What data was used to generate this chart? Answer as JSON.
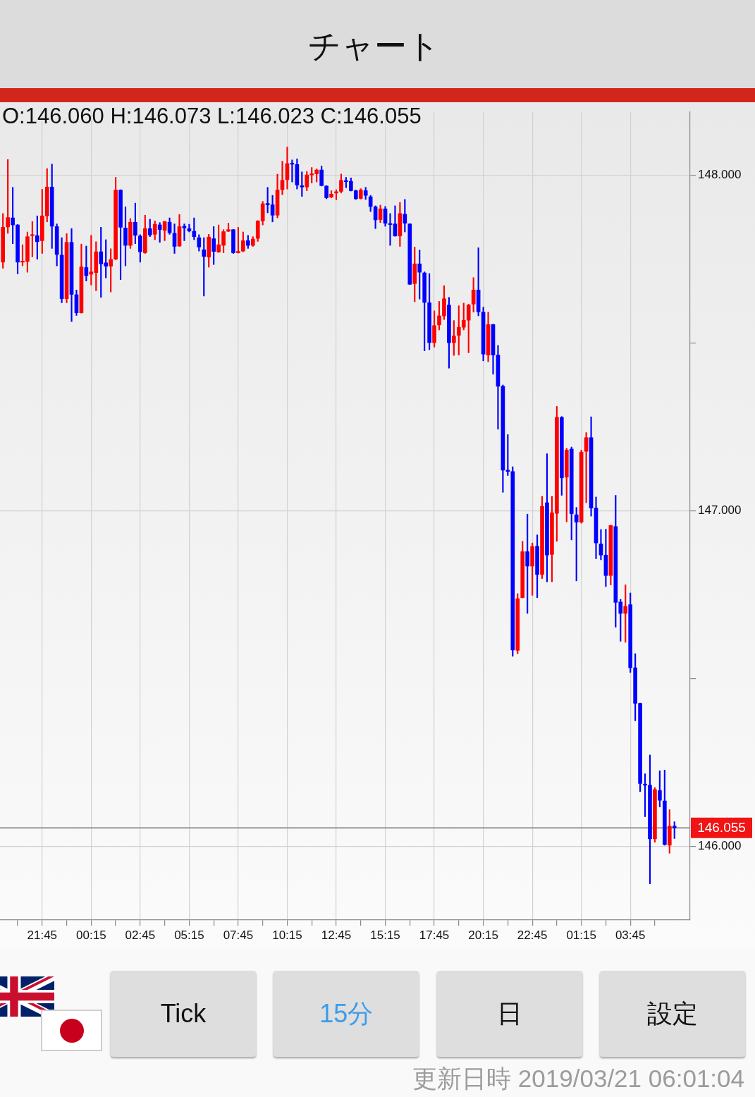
{
  "chart_data": {
    "type": "candlestick",
    "title": "チャート",
    "subtitle": "O:146.060 H:146.073 L:146.023 C:146.055",
    "x": [
      "2019-03-19T19:45",
      "2019-03-19T20:00",
      "2019-03-19T20:15",
      "2019-03-19T20:30",
      "2019-03-19T20:45",
      "2019-03-19T21:00",
      "2019-03-19T21:15",
      "2019-03-19T21:30",
      "2019-03-19T21:45",
      "2019-03-19T22:00",
      "2019-03-19T22:15",
      "2019-03-19T22:30",
      "2019-03-19T22:45",
      "2019-03-19T23:00",
      "2019-03-19T23:15",
      "2019-03-19T23:30",
      "2019-03-19T23:45",
      "2019-03-20T00:00",
      "2019-03-20T00:15",
      "2019-03-20T00:30",
      "2019-03-20T00:45",
      "2019-03-20T01:00",
      "2019-03-20T01:15",
      "2019-03-20T01:30",
      "2019-03-20T01:45",
      "2019-03-20T02:00",
      "2019-03-20T02:15",
      "2019-03-20T02:30",
      "2019-03-20T02:45",
      "2019-03-20T03:00",
      "2019-03-20T03:15",
      "2019-03-20T03:30",
      "2019-03-20T03:45",
      "2019-03-20T04:00",
      "2019-03-20T04:15",
      "2019-03-20T04:30",
      "2019-03-20T04:45",
      "2019-03-20T05:00",
      "2019-03-20T05:15",
      "2019-03-20T05:30",
      "2019-03-20T05:45",
      "2019-03-20T06:00",
      "2019-03-20T06:15",
      "2019-03-20T06:30",
      "2019-03-20T06:45",
      "2019-03-20T07:00",
      "2019-03-20T07:15",
      "2019-03-20T07:30",
      "2019-03-20T07:45",
      "2019-03-20T08:00",
      "2019-03-20T08:15",
      "2019-03-20T08:30",
      "2019-03-20T08:45",
      "2019-03-20T09:00",
      "2019-03-20T09:15",
      "2019-03-20T09:30",
      "2019-03-20T09:45",
      "2019-03-20T10:00",
      "2019-03-20T10:15",
      "2019-03-20T10:30",
      "2019-03-20T10:45",
      "2019-03-20T11:00",
      "2019-03-20T11:15",
      "2019-03-20T11:30",
      "2019-03-20T11:45",
      "2019-03-20T12:00",
      "2019-03-20T12:15",
      "2019-03-20T12:30",
      "2019-03-20T12:45",
      "2019-03-20T13:00",
      "2019-03-20T13:15",
      "2019-03-20T13:30",
      "2019-03-20T13:45",
      "2019-03-20T14:00",
      "2019-03-20T14:15",
      "2019-03-20T14:30",
      "2019-03-20T14:45",
      "2019-03-20T15:00",
      "2019-03-20T15:15",
      "2019-03-20T15:30",
      "2019-03-20T15:45",
      "2019-03-20T16:00",
      "2019-03-20T16:15",
      "2019-03-20T16:30",
      "2019-03-20T16:45",
      "2019-03-20T17:00",
      "2019-03-20T17:15",
      "2019-03-20T17:30",
      "2019-03-20T17:45",
      "2019-03-20T18:00",
      "2019-03-20T18:15",
      "2019-03-20T18:30",
      "2019-03-20T18:45",
      "2019-03-20T19:00",
      "2019-03-20T19:15",
      "2019-03-20T19:30",
      "2019-03-20T19:45",
      "2019-03-20T20:00",
      "2019-03-20T20:15",
      "2019-03-20T20:30",
      "2019-03-20T20:45",
      "2019-03-20T21:00",
      "2019-03-20T21:15",
      "2019-03-20T21:30",
      "2019-03-20T21:45",
      "2019-03-20T22:00",
      "2019-03-20T22:15",
      "2019-03-20T22:30",
      "2019-03-20T22:45",
      "2019-03-20T23:00",
      "2019-03-20T23:15",
      "2019-03-20T23:30",
      "2019-03-20T23:45",
      "2019-03-21T00:00",
      "2019-03-21T00:15",
      "2019-03-21T00:30",
      "2019-03-21T00:45",
      "2019-03-21T01:00",
      "2019-03-21T01:15",
      "2019-03-21T01:30",
      "2019-03-21T01:45",
      "2019-03-21T02:00",
      "2019-03-21T02:15",
      "2019-03-21T02:30",
      "2019-03-21T02:45",
      "2019-03-21T03:00",
      "2019-03-21T03:15",
      "2019-03-21T03:30",
      "2019-03-21T03:45",
      "2019-03-21T04:00",
      "2019-03-21T04:15",
      "2019-03-21T04:30",
      "2019-03-21T04:45",
      "2019-03-21T05:00",
      "2019-03-21T05:15",
      "2019-03-21T05:30",
      "2019-03-21T05:45",
      "2019-03-21T06:00"
    ],
    "ohlc": [
      [
        147.741,
        147.886,
        147.723,
        147.845
      ],
      [
        147.846,
        148.047,
        147.827,
        147.874
      ],
      [
        147.873,
        147.964,
        147.796,
        147.852
      ],
      [
        147.852,
        147.853,
        147.706,
        147.741
      ],
      [
        147.741,
        147.793,
        147.73,
        147.744
      ],
      [
        147.743,
        147.831,
        147.711,
        147.817
      ],
      [
        147.82,
        147.862,
        147.757,
        147.823
      ],
      [
        147.82,
        147.879,
        147.75,
        147.802
      ],
      [
        147.805,
        147.958,
        147.767,
        147.879
      ],
      [
        147.879,
        148.02,
        147.861,
        147.965
      ],
      [
        147.965,
        148.033,
        147.782,
        147.848
      ],
      [
        147.847,
        147.855,
        147.73,
        147.764
      ],
      [
        147.762,
        147.814,
        147.62,
        147.632
      ],
      [
        147.632,
        147.826,
        147.62,
        147.8
      ],
      [
        147.8,
        147.841,
        147.564,
        147.645
      ],
      [
        147.644,
        147.658,
        147.582,
        147.59
      ],
      [
        147.59,
        147.795,
        147.589,
        147.727
      ],
      [
        147.725,
        147.789,
        147.685,
        147.701
      ],
      [
        147.705,
        147.821,
        147.673,
        147.712
      ],
      [
        147.71,
        147.802,
        147.656,
        147.772
      ],
      [
        147.772,
        147.845,
        147.636,
        147.736
      ],
      [
        147.739,
        147.808,
        147.694,
        147.729
      ],
      [
        147.729,
        147.781,
        147.652,
        147.749
      ],
      [
        147.75,
        147.994,
        147.748,
        147.956
      ],
      [
        147.956,
        147.957,
        147.689,
        147.845
      ],
      [
        147.843,
        147.906,
        147.73,
        147.791
      ],
      [
        147.791,
        147.871,
        147.782,
        147.86
      ],
      [
        147.86,
        147.917,
        147.796,
        147.821
      ],
      [
        147.819,
        147.823,
        147.741,
        147.772
      ],
      [
        147.769,
        147.881,
        147.767,
        147.841
      ],
      [
        147.841,
        147.869,
        147.817,
        147.822
      ],
      [
        147.824,
        147.864,
        147.808,
        147.854
      ],
      [
        147.852,
        147.859,
        147.8,
        147.838
      ],
      [
        147.836,
        147.863,
        147.805,
        147.862
      ],
      [
        147.86,
        147.873,
        147.824,
        147.829
      ],
      [
        147.827,
        147.855,
        147.767,
        147.788
      ],
      [
        147.789,
        147.883,
        147.788,
        147.847
      ],
      [
        147.848,
        147.855,
        147.805,
        147.843
      ],
      [
        147.841,
        147.854,
        147.831,
        147.834
      ],
      [
        147.833,
        147.873,
        147.808,
        147.817
      ],
      [
        147.814,
        147.823,
        147.774,
        147.786
      ],
      [
        147.778,
        147.814,
        147.64,
        147.758
      ],
      [
        147.756,
        147.824,
        147.726,
        147.816
      ],
      [
        147.811,
        147.847,
        147.734,
        147.773
      ],
      [
        147.771,
        147.852,
        147.77,
        147.793
      ],
      [
        147.791,
        147.838,
        147.769,
        147.832
      ],
      [
        147.833,
        147.857,
        147.832,
        147.838
      ],
      [
        147.838,
        147.839,
        147.767,
        147.769
      ],
      [
        147.769,
        147.845,
        147.768,
        147.773
      ],
      [
        147.774,
        147.831,
        147.772,
        147.805
      ],
      [
        147.805,
        147.821,
        147.782,
        147.791
      ],
      [
        147.791,
        147.817,
        147.788,
        147.81
      ],
      [
        147.812,
        147.865,
        147.803,
        147.864
      ],
      [
        147.864,
        147.922,
        147.852,
        147.915
      ],
      [
        147.916,
        147.964,
        147.888,
        147.912
      ],
      [
        147.912,
        147.94,
        147.861,
        147.881
      ],
      [
        147.881,
        148.003,
        147.873,
        147.956
      ],
      [
        147.957,
        148.042,
        147.942,
        147.985
      ],
      [
        147.987,
        148.084,
        147.959,
        148.035
      ],
      [
        148.036,
        148.046,
        147.98,
        148.033
      ],
      [
        148.032,
        148.049,
        147.959,
        147.971
      ],
      [
        147.969,
        148.01,
        147.937,
        147.965
      ],
      [
        147.965,
        148.011,
        147.954,
        148.001
      ],
      [
        148.001,
        148.023,
        147.977,
        148.004
      ],
      [
        148.004,
        148.019,
        147.98,
        148.016
      ],
      [
        148.016,
        148.028,
        147.968,
        147.969
      ],
      [
        147.968,
        147.969,
        147.93,
        147.933
      ],
      [
        147.935,
        147.954,
        147.933,
        147.944
      ],
      [
        147.947,
        147.957,
        147.927,
        147.951
      ],
      [
        147.952,
        148.004,
        147.947,
        147.985
      ],
      [
        147.984,
        147.994,
        147.963,
        147.981
      ],
      [
        147.982,
        147.992,
        147.953,
        147.954
      ],
      [
        147.954,
        147.956,
        147.928,
        147.93
      ],
      [
        147.931,
        147.96,
        147.929,
        147.956
      ],
      [
        147.954,
        147.964,
        147.928,
        147.94
      ],
      [
        147.936,
        147.94,
        147.892,
        147.907
      ],
      [
        147.906,
        147.909,
        147.841,
        147.867
      ],
      [
        147.868,
        147.911,
        147.859,
        147.9
      ],
      [
        147.9,
        147.907,
        147.848,
        147.857
      ],
      [
        147.855,
        147.886,
        147.791,
        147.853
      ],
      [
        147.855,
        147.909,
        147.818,
        147.819
      ],
      [
        147.819,
        147.919,
        147.788,
        147.886
      ],
      [
        147.884,
        147.928,
        147.831,
        147.857
      ],
      [
        147.855,
        147.856,
        147.674,
        147.675
      ],
      [
        147.677,
        147.786,
        147.623,
        147.736
      ],
      [
        147.736,
        147.777,
        147.631,
        147.711
      ],
      [
        147.709,
        147.712,
        147.477,
        147.621
      ],
      [
        147.62,
        147.707,
        147.48,
        147.501
      ],
      [
        147.501,
        147.596,
        147.488,
        147.552
      ],
      [
        147.554,
        147.624,
        147.539,
        147.581
      ],
      [
        147.581,
        147.671,
        147.57,
        147.632
      ],
      [
        147.613,
        147.636,
        147.425,
        147.501
      ],
      [
        147.501,
        147.567,
        147.463,
        147.521
      ],
      [
        147.523,
        147.611,
        147.464,
        147.547
      ],
      [
        147.547,
        147.619,
        147.539,
        147.568
      ],
      [
        147.568,
        147.616,
        147.471,
        147.613
      ],
      [
        147.616,
        147.695,
        147.592,
        147.658
      ],
      [
        147.658,
        147.784,
        147.581,
        147.593
      ],
      [
        147.592,
        147.607,
        147.447,
        147.467
      ],
      [
        147.464,
        147.592,
        147.444,
        147.555
      ],
      [
        147.555,
        147.556,
        147.407,
        147.464
      ],
      [
        147.464,
        147.493,
        147.243,
        147.371
      ],
      [
        147.371,
        147.375,
        147.055,
        147.121
      ],
      [
        147.121,
        147.227,
        147.105,
        147.117
      ],
      [
        147.117,
        147.131,
        146.566,
        146.585
      ],
      [
        146.584,
        146.753,
        146.574,
        146.738
      ],
      [
        146.741,
        146.909,
        146.74,
        146.878
      ],
      [
        146.878,
        146.99,
        146.694,
        146.835
      ],
      [
        146.835,
        146.904,
        146.748,
        146.893
      ],
      [
        146.894,
        146.928,
        146.741,
        146.81
      ],
      [
        146.81,
        147.043,
        146.798,
        147.013
      ],
      [
        147.024,
        147.17,
        146.788,
        146.868
      ],
      [
        146.87,
        147.043,
        146.788,
        146.994
      ],
      [
        146.992,
        147.311,
        146.909,
        147.278
      ],
      [
        147.278,
        147.281,
        147.046,
        147.098
      ],
      [
        147.1,
        147.186,
        146.967,
        147.181
      ],
      [
        147.184,
        147.19,
        146.913,
        146.991
      ],
      [
        146.988,
        147.01,
        146.791,
        146.966
      ],
      [
        146.966,
        147.181,
        146.963,
        147.175
      ],
      [
        147.177,
        147.233,
        147.024,
        147.218
      ],
      [
        147.218,
        147.28,
        146.984,
        147.008
      ],
      [
        147.008,
        147.041,
        146.857,
        146.904
      ],
      [
        146.901,
        146.944,
        146.854,
        146.868
      ],
      [
        146.868,
        146.945,
        146.774,
        146.807
      ],
      [
        146.807,
        146.957,
        146.779,
        146.956
      ],
      [
        146.953,
        147.046,
        146.653,
        146.727
      ],
      [
        146.728,
        146.736,
        146.611,
        146.694
      ],
      [
        146.694,
        146.779,
        146.608,
        146.715
      ],
      [
        146.72,
        146.755,
        146.518,
        146.532
      ],
      [
        146.532,
        146.574,
        146.374,
        146.426
      ],
      [
        146.426,
        146.427,
        146.163,
        146.187
      ],
      [
        146.185,
        146.216,
        146.088,
        146.182
      ],
      [
        146.182,
        146.272,
        145.888,
        146.022
      ],
      [
        146.022,
        146.175,
        146.012,
        146.169
      ],
      [
        146.166,
        146.225,
        146.117,
        146.137
      ],
      [
        146.135,
        146.227,
        146.003,
        146.005
      ],
      [
        146.003,
        146.109,
        145.979,
        146.06
      ],
      [
        146.06,
        146.073,
        146.023,
        146.055
      ]
    ],
    "colors": [
      "#ff0000",
      "#ff0000",
      "#0000ff",
      "#0000ff",
      "#ff0000",
      "#ff0000",
      "#ff0000",
      "#0000ff",
      "#ff0000",
      "#ff0000",
      "#0000ff",
      "#0000ff",
      "#0000ff",
      "#ff0000",
      "#0000ff",
      "#0000ff",
      "#ff0000",
      "#0000ff",
      "#ff0000",
      "#ff0000",
      "#0000ff",
      "#0000ff",
      "#ff0000",
      "#ff0000",
      "#0000ff",
      "#0000ff",
      "#ff0000",
      "#0000ff",
      "#0000ff",
      "#ff0000",
      "#0000ff",
      "#ff0000",
      "#0000ff",
      "#ff0000",
      "#0000ff",
      "#0000ff",
      "#ff0000",
      "#0000ff",
      "#0000ff",
      "#0000ff",
      "#0000ff",
      "#0000ff",
      "#ff0000",
      "#0000ff",
      "#ff0000",
      "#ff0000",
      "#ff0000",
      "#0000ff",
      "#ff0000",
      "#ff0000",
      "#0000ff",
      "#ff0000",
      "#ff0000",
      "#ff0000",
      "#0000ff",
      "#0000ff",
      "#ff0000",
      "#ff0000",
      "#ff0000",
      "#0000ff",
      "#0000ff",
      "#0000ff",
      "#ff0000",
      "#ff0000",
      "#ff0000",
      "#0000ff",
      "#0000ff",
      "#ff0000",
      "#ff0000",
      "#ff0000",
      "#0000ff",
      "#0000ff",
      "#0000ff",
      "#ff0000",
      "#0000ff",
      "#0000ff",
      "#0000ff",
      "#ff0000",
      "#0000ff",
      "#0000ff",
      "#0000ff",
      "#ff0000",
      "#0000ff",
      "#0000ff",
      "#ff0000",
      "#0000ff",
      "#0000ff",
      "#0000ff",
      "#ff0000",
      "#ff0000",
      "#ff0000",
      "#0000ff",
      "#ff0000",
      "#ff0000",
      "#ff0000",
      "#ff0000",
      "#ff0000",
      "#0000ff",
      "#0000ff",
      "#ff0000",
      "#0000ff",
      "#0000ff",
      "#0000ff",
      "#0000ff",
      "#0000ff",
      "#ff0000",
      "#ff0000",
      "#0000ff",
      "#ff0000",
      "#0000ff",
      "#ff0000",
      "#0000ff",
      "#ff0000",
      "#ff0000",
      "#0000ff",
      "#ff0000",
      "#0000ff",
      "#0000ff",
      "#ff0000",
      "#ff0000",
      "#0000ff",
      "#0000ff",
      "#0000ff",
      "#0000ff",
      "#ff0000",
      "#0000ff",
      "#0000ff",
      "#ff0000",
      "#0000ff",
      "#0000ff",
      "#0000ff",
      "#0000ff",
      "#0000ff",
      "#ff0000",
      "#0000ff",
      "#0000ff",
      "#ff0000",
      "#0000ff"
    ],
    "xlim": [
      "2019-03-19T19:36",
      "2019-03-21T06:48"
    ],
    "xticks": [
      {
        "value": "2019-03-19T20:30",
        "label": null
      },
      {
        "value": "2019-03-19T21:45",
        "label": "21:45"
      },
      {
        "value": "2019-03-19T23:00",
        "label": null
      },
      {
        "value": "2019-03-20T00:15",
        "label": "00:15"
      },
      {
        "value": "2019-03-20T01:30",
        "label": null
      },
      {
        "value": "2019-03-20T02:45",
        "label": "02:45"
      },
      {
        "value": "2019-03-20T04:00",
        "label": null
      },
      {
        "value": "2019-03-20T05:15",
        "label": "05:15"
      },
      {
        "value": "2019-03-20T06:30",
        "label": null
      },
      {
        "value": "2019-03-20T07:45",
        "label": "07:45"
      },
      {
        "value": "2019-03-20T09:00",
        "label": null
      },
      {
        "value": "2019-03-20T10:15",
        "label": "10:15"
      },
      {
        "value": "2019-03-20T11:30",
        "label": null
      },
      {
        "value": "2019-03-20T12:45",
        "label": "12:45"
      },
      {
        "value": "2019-03-20T14:00",
        "label": null
      },
      {
        "value": "2019-03-20T15:15",
        "label": "15:15"
      },
      {
        "value": "2019-03-20T16:30",
        "label": null
      },
      {
        "value": "2019-03-20T17:45",
        "label": "17:45"
      },
      {
        "value": "2019-03-20T19:00",
        "label": null
      },
      {
        "value": "2019-03-20T20:15",
        "label": "20:15"
      },
      {
        "value": "2019-03-20T21:30",
        "label": null
      },
      {
        "value": "2019-03-20T22:45",
        "label": "22:45"
      },
      {
        "value": "2019-03-21T00:00",
        "label": null
      },
      {
        "value": "2019-03-21T01:15",
        "label": "01:15"
      },
      {
        "value": "2019-03-21T02:30",
        "label": null
      },
      {
        "value": "2019-03-21T03:45",
        "label": "03:45"
      },
      {
        "value": "2019-03-21T05:00",
        "label": null
      }
    ],
    "ylim": [
      145.78,
      148.19
    ],
    "yticks": [
      {
        "value": 146,
        "label": "146.000"
      },
      {
        "value": 146.5,
        "label": null
      },
      {
        "value": 147,
        "label": "147.000"
      },
      {
        "value": 147.5,
        "label": null
      },
      {
        "value": 148,
        "label": "148.000"
      }
    ],
    "grid": true,
    "ref_lines": [
      {
        "axis": "y",
        "value": 146.055,
        "label": "146.055",
        "color": "#999999"
      }
    ],
    "annotations": [
      "Tick",
      "15分",
      "日",
      "設定",
      "更新日時 2019/03/21 06:01:04"
    ]
  }
}
